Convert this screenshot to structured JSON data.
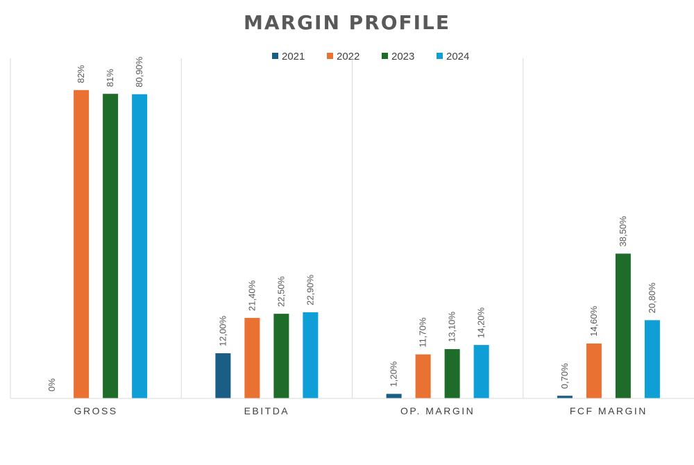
{
  "chart_data": {
    "type": "bar",
    "title": "MARGIN PROFILE",
    "categories": [
      "GROSS",
      "EBITDA",
      "OP. MARGIN",
      "FCF MARGIN"
    ],
    "series": [
      {
        "name": "2021",
        "color": "#1a5e85",
        "values": [
          0,
          12.0,
          1.2,
          0.7
        ],
        "labels": [
          "0%",
          "12,00%",
          "1,20%",
          "0,70%"
        ]
      },
      {
        "name": "2022",
        "color": "#e97132",
        "values": [
          82,
          21.4,
          11.7,
          14.6
        ],
        "labels": [
          "82%",
          "21,40%",
          "11,70%",
          "14,60%"
        ]
      },
      {
        "name": "2023",
        "color": "#1e6b2a",
        "values": [
          81,
          22.5,
          13.1,
          38.5
        ],
        "labels": [
          "81%",
          "22,50%",
          "13,10%",
          "38,50%"
        ]
      },
      {
        "name": "2024",
        "color": "#0f9ed5",
        "values": [
          80.9,
          22.9,
          14.2,
          20.8
        ],
        "labels": [
          "80,90%",
          "22,90%",
          "14,20%",
          "20,80%"
        ]
      }
    ],
    "ylim": [
      0,
      90
    ],
    "legend": "top",
    "grid": false
  }
}
